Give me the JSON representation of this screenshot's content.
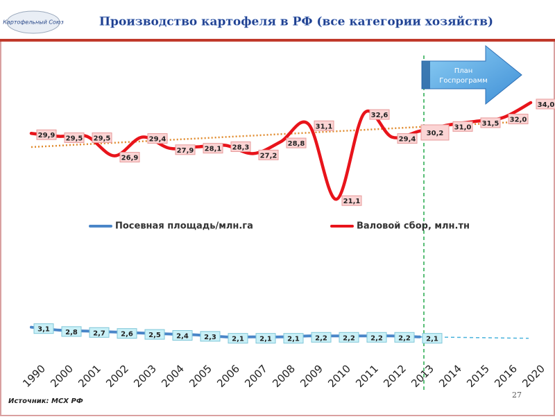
{
  "header": {
    "logo": "Картофельный Союз",
    "title": "Производство картофеля в РФ (все категории хозяйств)"
  },
  "chart_data": {
    "type": "line",
    "categories": [
      "1990",
      "2000",
      "2001",
      "2002",
      "2003",
      "2004",
      "2005",
      "2006",
      "2007",
      "2008",
      "2009",
      "2010",
      "2011",
      "2012",
      "2013",
      "2014",
      "2015",
      "2016",
      "2020"
    ],
    "series": [
      {
        "name": "Посевная площадь/млн.га",
        "color": "#4a86c8",
        "axis": "y2",
        "values": [
          3.1,
          2.8,
          2.7,
          2.6,
          2.5,
          2.4,
          2.3,
          2.1,
          2.1,
          2.1,
          2.2,
          2.2,
          2.2,
          2.2,
          2.1,
          null,
          null,
          null,
          null
        ],
        "value_labels": [
          "3,1",
          "2,8",
          "2,7",
          "2,6",
          "2,5",
          "2,4",
          "2,3",
          "2,1",
          "2,1",
          "2,1",
          "2,2",
          "2,2",
          "2,2",
          "2,2",
          "2,1",
          null,
          null,
          null,
          null
        ]
      },
      {
        "name": "Валовой сбор, млн.тн",
        "color": "#e8141b",
        "values": [
          29.9,
          29.5,
          29.5,
          26.9,
          29.4,
          27.9,
          28.1,
          28.3,
          27.2,
          28.8,
          31.1,
          21.1,
          32.6,
          29.4,
          30.2,
          31.0,
          31.5,
          32.0,
          34.0
        ],
        "value_labels": [
          "29,9",
          "29,5",
          "29,5",
          "26,9",
          "29,4",
          "27,9",
          "28,1",
          "28,3",
          "27,2",
          "28,8",
          "31,1",
          "21,1",
          "32,6",
          "29,4",
          "30,2",
          "31,0",
          "31,5",
          "32,0",
          "34,0"
        ]
      }
    ],
    "ylim": [
      0,
      44
    ],
    "y2lim": [
      0,
      34
    ],
    "annotation": [
      "План",
      "Госпрограмм"
    ]
  },
  "footer": {
    "source": "Источник: МСХ РФ",
    "page": "27"
  }
}
